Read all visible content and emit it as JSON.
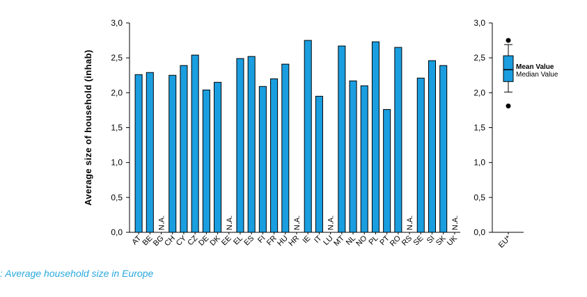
{
  "caption": ": Average household size in Europe",
  "colors": {
    "bar": "#1a9ee0",
    "outline": "#000000",
    "caption": "#2aa8dc"
  },
  "chart_data": [
    {
      "type": "bar",
      "ylabel": "Average size of household (inhab)",
      "ylim": [
        0,
        3
      ],
      "yticks": [
        "0,0",
        "0,5",
        "1,0",
        "1,5",
        "2,0",
        "2,5",
        "3,0"
      ],
      "categories": [
        "AT",
        "BE",
        "BG",
        "CH",
        "CY",
        "CZ",
        "DE",
        "DK",
        "EE",
        "EL",
        "ES",
        "FI",
        "FR",
        "HU",
        "HR",
        "IE",
        "IT",
        "LU",
        "MT",
        "NL",
        "NO",
        "PL",
        "PT",
        "RO",
        "RS",
        "SE",
        "SI",
        "SK",
        "UK"
      ],
      "values": [
        2.26,
        2.29,
        null,
        2.25,
        2.39,
        2.54,
        2.04,
        2.15,
        null,
        2.49,
        2.52,
        2.09,
        2.2,
        2.41,
        null,
        2.75,
        1.95,
        null,
        2.67,
        2.17,
        2.1,
        2.73,
        1.76,
        2.65,
        null,
        2.21,
        2.46,
        2.39,
        null
      ],
      "missing_label": "N.A."
    },
    {
      "type": "boxplot",
      "ylim": [
        0,
        3
      ],
      "yticks": [
        "0,0",
        "0,5",
        "1,0",
        "1,5",
        "2,0",
        "2,5",
        "3,0"
      ],
      "category": "EU*",
      "whisker_low": 2.01,
      "q1": 2.16,
      "median": 2.33,
      "q3": 2.53,
      "whisker_high": 2.69,
      "outliers": [
        2.75,
        1.81
      ],
      "legend": {
        "mean_label": "Mean Value",
        "median_label": "Median Value"
      }
    }
  ]
}
